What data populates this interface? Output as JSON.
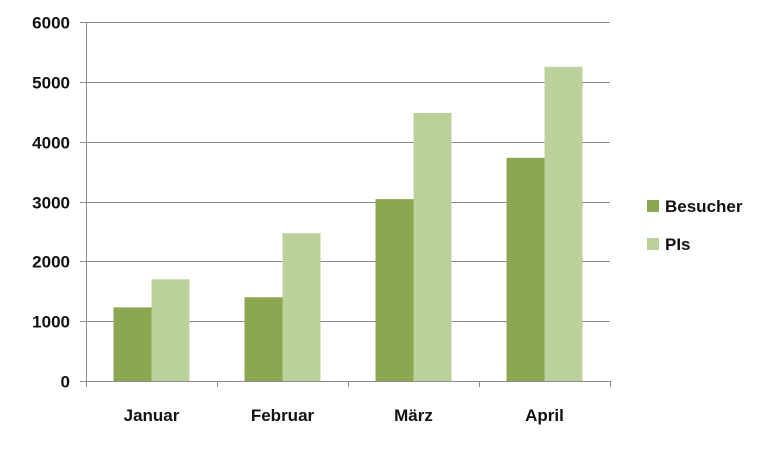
{
  "chart_data": {
    "type": "bar",
    "title": "",
    "xlabel": "",
    "ylabel": "",
    "categories": [
      "Januar",
      "Februar",
      "März",
      "April"
    ],
    "series": [
      {
        "name": "Besucher",
        "color": "#8BA750",
        "values": [
          1230,
          1400,
          3040,
          3730
        ]
      },
      {
        "name": "PIs",
        "color": "#BBD09A",
        "values": [
          1700,
          2470,
          4480,
          5250
        ]
      }
    ],
    "ylim": [
      0,
      6000
    ],
    "yticks": [
      0,
      1000,
      2000,
      3000,
      4000,
      5000,
      6000
    ],
    "grid": true,
    "legend_position": "right",
    "gridline_color": "#8c8c8c",
    "axis_color": "#8c8c8c"
  }
}
